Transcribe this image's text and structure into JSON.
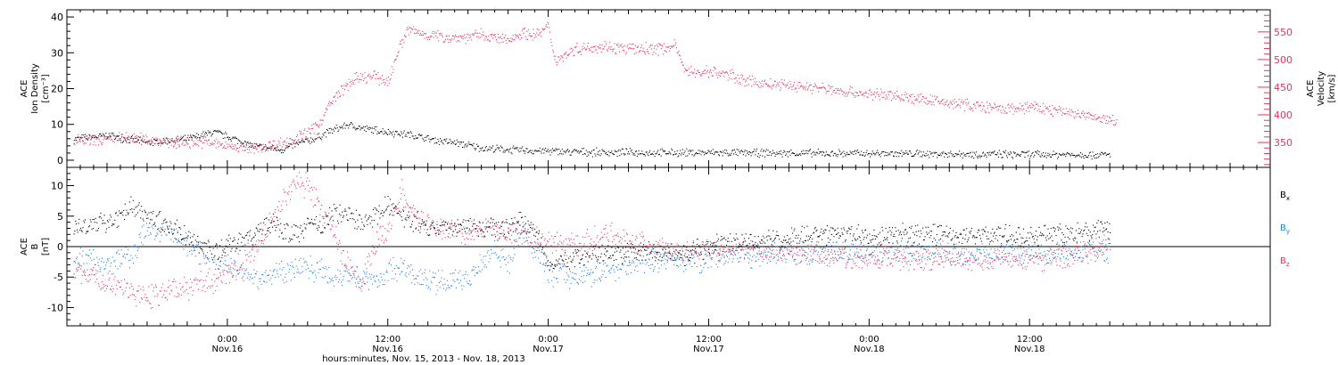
{
  "colors": {
    "black": "#000000",
    "pink": "#e8325f",
    "blue": "#1e7fe0",
    "axis": "#000000"
  },
  "xaxis": {
    "title": "hours:minutes, Nov. 15, 2013 - Nov. 18, 2013",
    "range_hours": [
      -12.0,
      78.0
    ],
    "major_ticks": [
      {
        "hour": 0,
        "time": "0:00",
        "date": "Nov.16"
      },
      {
        "hour": 12,
        "time": "12:00",
        "date": "Nov.16"
      },
      {
        "hour": 24,
        "time": "0:00",
        "date": "Nov.17"
      },
      {
        "hour": 36,
        "time": "12:00",
        "date": "Nov.17"
      },
      {
        "hour": 48,
        "time": "0:00",
        "date": "Nov.18"
      },
      {
        "hour": 60,
        "time": "12:00",
        "date": "Nov.18"
      }
    ]
  },
  "chart_data": [
    {
      "type": "scatter",
      "panel": "top",
      "ylabel_left": [
        "ACE",
        "Ion Density",
        "[cm⁻³]"
      ],
      "ylabel_right": [
        "ACE",
        "Velocity",
        "[km/s]"
      ],
      "ylim_left": [
        -2,
        42
      ],
      "ylim_right": [
        305,
        590
      ],
      "yticks_left": [
        0,
        10,
        20,
        30,
        40
      ],
      "yticks_right": [
        350,
        400,
        450,
        500,
        550
      ],
      "series": [
        {
          "axis": "left",
          "color": "black",
          "x": [
            -11.5,
            -9,
            -6,
            -3,
            -1,
            0.5,
            2,
            4,
            5.5,
            6.5,
            7.5,
            9,
            10,
            12,
            14,
            15,
            17,
            19,
            21,
            23,
            25,
            28,
            32,
            36,
            40,
            45,
            48,
            52,
            56,
            60,
            63,
            66
          ],
          "y": [
            6,
            7,
            5,
            6,
            8,
            6,
            4,
            3,
            5,
            6,
            8,
            10,
            9,
            8,
            7,
            6,
            5,
            3.5,
            3,
            2.8,
            2.5,
            2.3,
            2.2,
            2.2,
            2.1,
            2,
            2,
            1.9,
            1.8,
            1.7,
            1.7,
            1.6
          ]
        },
        {
          "axis": "right",
          "color": "pink",
          "x": [
            -11.5,
            -10,
            -8,
            -6,
            -4,
            -2,
            0,
            2,
            3,
            4.5,
            6,
            7,
            7.5,
            8.5,
            9.5,
            11,
            12,
            12.8,
            13.5,
            15,
            17,
            19,
            21,
            22,
            23,
            24,
            24.5,
            26,
            28,
            30,
            32,
            33.5,
            34,
            35,
            36,
            38,
            39,
            41,
            44,
            47,
            50,
            53,
            55,
            58,
            60,
            63,
            65.5,
            66.5
          ],
          "y": [
            355,
            352,
            360,
            357,
            350,
            352,
            345,
            338,
            345,
            352,
            368,
            390,
            415,
            445,
            465,
            470,
            460,
            520,
            555,
            545,
            540,
            545,
            535,
            550,
            545,
            560,
            500,
            520,
            525,
            520,
            520,
            525,
            490,
            475,
            480,
            470,
            460,
            455,
            450,
            440,
            435,
            425,
            420,
            410,
            415,
            405,
            392,
            390
          ]
        }
      ]
    },
    {
      "type": "scatter",
      "panel": "bottom",
      "ylabel_left": [
        "ACE",
        "B",
        "[nT]"
      ],
      "ylim": [
        -13,
        13
      ],
      "yticks": [
        -10,
        -5,
        0,
        5,
        10
      ],
      "legend": [
        {
          "label": "Bx",
          "sub": "x",
          "color": "black"
        },
        {
          "label": "By",
          "sub": "y",
          "color": "blue"
        },
        {
          "label": "Bz",
          "sub": "z",
          "color": "pink"
        }
      ],
      "series": [
        {
          "name": "Bx",
          "color": "black",
          "x": [
            -11.5,
            -9,
            -7,
            -6,
            -4,
            -2,
            -1,
            0,
            2,
            3,
            4,
            5,
            6,
            7,
            8,
            9,
            10,
            11,
            12,
            13,
            14,
            16,
            18,
            20,
            22,
            23,
            24,
            26,
            28,
            30,
            32,
            34,
            36,
            40,
            44,
            48,
            52,
            56,
            60,
            63,
            66
          ],
          "y": [
            3,
            4,
            7,
            5,
            3,
            0,
            -1,
            0,
            2,
            4,
            3,
            2,
            4,
            3,
            6,
            5,
            4,
            5,
            7,
            5,
            4,
            3,
            4,
            3,
            4,
            3,
            -3,
            -2,
            -1,
            -1,
            -1,
            -1.5,
            0,
            1,
            2,
            2,
            2,
            2,
            2,
            2.5,
            3
          ]
        },
        {
          "name": "By",
          "color": "blue",
          "x": [
            -11.5,
            -10,
            -9,
            -7,
            -6,
            -4,
            -2,
            0,
            1,
            2,
            3,
            4,
            6,
            8,
            9,
            10,
            11,
            12,
            13,
            14,
            16,
            18,
            20,
            21,
            22,
            23,
            24,
            26,
            28,
            30,
            32,
            34,
            36,
            38,
            40,
            44,
            48,
            52,
            56,
            60,
            63,
            66
          ],
          "y": [
            -2,
            -2,
            -3,
            -1,
            3,
            2,
            -1,
            -3,
            -4,
            -5,
            -5,
            -4,
            -3,
            -5,
            -4,
            -5,
            -6,
            -4,
            -3,
            -5,
            -6,
            -5,
            0,
            -3,
            3,
            0,
            -4,
            -5,
            -4,
            -3,
            -2,
            -2,
            -2,
            -1,
            -1.5,
            -1,
            -1,
            -1,
            -1,
            -1,
            -1,
            -0.5
          ]
        },
        {
          "name": "Bz",
          "color": "pink",
          "x": [
            -11.5,
            -10,
            -8,
            -6,
            -4,
            -2,
            0,
            1,
            2,
            3,
            4,
            5,
            6,
            7,
            8,
            9,
            10,
            11,
            12,
            13,
            14,
            15,
            16,
            18,
            20,
            22,
            24,
            26,
            28,
            30,
            32,
            34,
            36,
            38,
            40,
            44,
            48,
            52,
            56,
            60,
            63,
            66
          ],
          "y": [
            -4,
            -5,
            -7,
            -8,
            -7,
            -6,
            -5,
            -3,
            0,
            3,
            7,
            11,
            10,
            6,
            2,
            -3,
            -6,
            0,
            3,
            9,
            5,
            4,
            3,
            2,
            3,
            2,
            1,
            0,
            2,
            1,
            0,
            -1,
            0,
            -0.5,
            -1,
            -1,
            -2,
            -2,
            -2,
            -2,
            -1.5,
            0.5
          ]
        }
      ]
    }
  ]
}
